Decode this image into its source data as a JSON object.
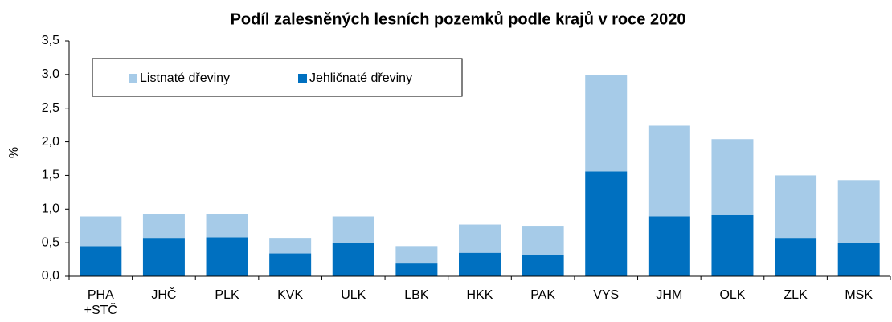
{
  "chart_data": {
    "type": "bar",
    "stacked": true,
    "title": "Podíl zalesněných lesních pozemků podle krajů v roce 2020",
    "y_label": "%",
    "categories": [
      "PHA\n+STČ",
      "JHČ",
      "PLK",
      "KVK",
      "ULK",
      "LBK",
      "HKK",
      "PAK",
      "VYS",
      "JHM",
      "OLK",
      "ZLK",
      "MSK"
    ],
    "series": [
      {
        "name": "Listnaté dřeviny",
        "color": "#a6cbe8",
        "values": [
          0.44,
          0.37,
          0.34,
          0.22,
          0.4,
          0.26,
          0.42,
          0.42,
          1.43,
          1.35,
          1.13,
          0.94,
          0.93
        ]
      },
      {
        "name": "Jehličnaté dřeviny",
        "color": "#0070c0",
        "values": [
          0.45,
          0.56,
          0.58,
          0.34,
          0.49,
          0.19,
          0.35,
          0.32,
          1.56,
          0.89,
          0.91,
          0.56,
          0.5
        ]
      }
    ],
    "ylim": [
      0,
      3.5
    ],
    "yticks": [
      {
        "value": 0,
        "label": "0,0"
      },
      {
        "value": 0.5,
        "label": "0,5"
      },
      {
        "value": 1,
        "label": "1,0"
      },
      {
        "value": 1.5,
        "label": "1,5"
      },
      {
        "value": 2,
        "label": "2,0"
      },
      {
        "value": 2.5,
        "label": "2,5"
      },
      {
        "value": 3,
        "label": "3,0"
      },
      {
        "value": 3.5,
        "label": "3,5"
      }
    ],
    "grid": false,
    "legend": "top-left"
  }
}
